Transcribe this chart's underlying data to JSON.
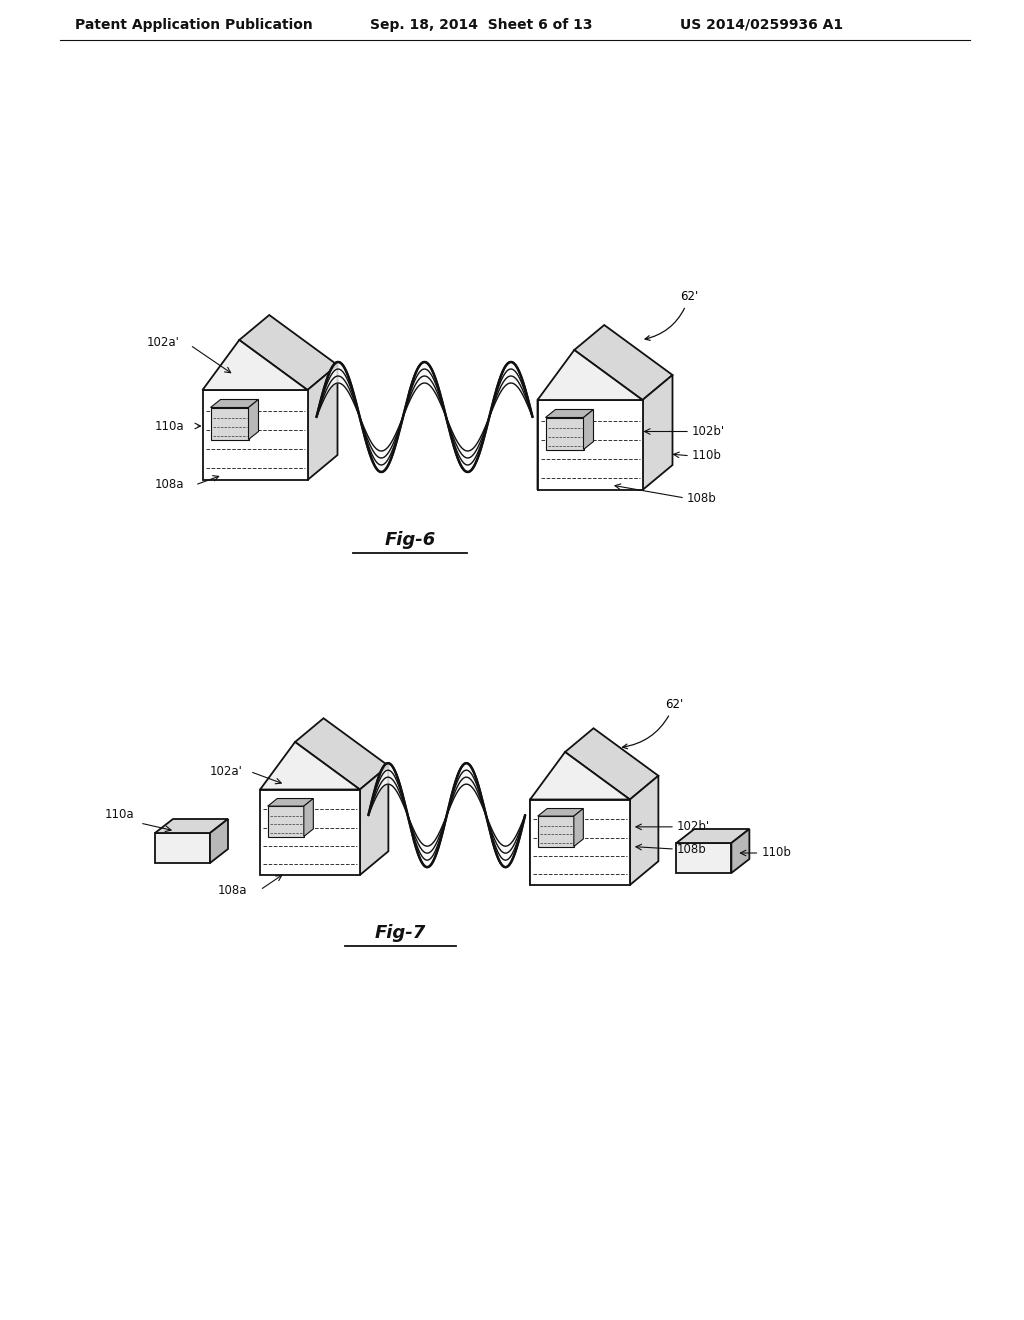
{
  "bg_color": "#ffffff",
  "header_left": "Patent Application Publication",
  "header_center": "Sep. 18, 2014  Sheet 6 of 13",
  "header_right": "US 2014/0259936 A1",
  "header_fontsize": 10,
  "fig6_label": "Fig-6",
  "fig7_label": "Fig-7",
  "label_fontsize": 8.5,
  "figlabel_fontsize": 13,
  "line_color": "#111111",
  "dashed_color": "#333333",
  "face_light": "#f0f0f0",
  "face_mid": "#d8d8d8",
  "face_dark": "#b8b8b8",
  "face_white": "#ffffff"
}
